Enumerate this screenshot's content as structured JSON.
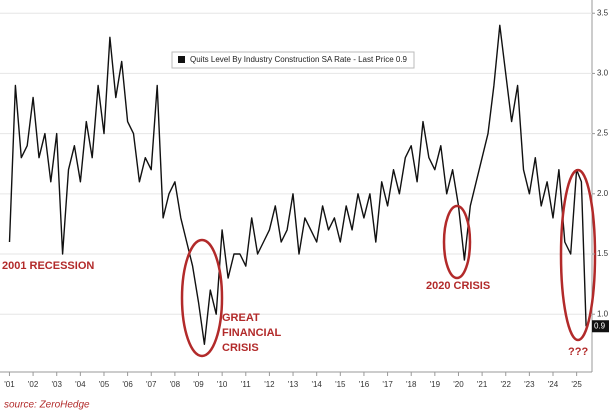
{
  "chart_data": {
    "type": "line",
    "legend": "Quits Level By Industry Construction SA Rate - Last Price 0.9",
    "series": [
      {
        "name": "Quits Level By Industry Construction SA Rate",
        "color": "#111111",
        "x": [
          2001,
          2001.25,
          2001.5,
          2001.75,
          2002,
          2002.25,
          2002.5,
          2002.75,
          2003,
          2003.25,
          2003.5,
          2003.75,
          2004,
          2004.25,
          2004.5,
          2004.75,
          2005,
          2005.25,
          2005.5,
          2005.75,
          2006,
          2006.25,
          2006.5,
          2006.75,
          2007,
          2007.25,
          2007.5,
          2007.75,
          2008,
          2008.25,
          2008.5,
          2008.75,
          2009,
          2009.25,
          2009.5,
          2009.75,
          2010,
          2010.25,
          2010.5,
          2010.75,
          2011,
          2011.25,
          2011.5,
          2011.75,
          2012,
          2012.25,
          2012.5,
          2012.75,
          2013,
          2013.25,
          2013.5,
          2013.75,
          2014,
          2014.25,
          2014.5,
          2014.75,
          2015,
          2015.25,
          2015.5,
          2015.75,
          2016,
          2016.25,
          2016.5,
          2016.75,
          2017,
          2017.25,
          2017.5,
          2017.75,
          2018,
          2018.25,
          2018.5,
          2018.75,
          2019,
          2019.25,
          2019.5,
          2019.75,
          2020,
          2020.25,
          2020.5,
          2020.75,
          2021,
          2021.25,
          2021.5,
          2021.75,
          2022,
          2022.25,
          2022.5,
          2022.75,
          2023,
          2023.25,
          2023.5,
          2023.75,
          2024,
          2024.25,
          2024.5,
          2024.75,
          2025,
          2025.2,
          2025.4
        ],
        "values": [
          1.6,
          2.9,
          2.3,
          2.4,
          2.8,
          2.3,
          2.5,
          2.1,
          2.5,
          1.5,
          2.2,
          2.4,
          2.1,
          2.6,
          2.3,
          2.9,
          2.5,
          3.3,
          2.8,
          3.1,
          2.6,
          2.5,
          2.1,
          2.3,
          2.2,
          2.9,
          1.8,
          2.0,
          2.1,
          1.8,
          1.6,
          1.4,
          1.1,
          0.75,
          1.2,
          1.0,
          1.7,
          1.3,
          1.5,
          1.5,
          1.4,
          1.8,
          1.5,
          1.6,
          1.7,
          1.9,
          1.6,
          1.7,
          2.0,
          1.5,
          1.8,
          1.7,
          1.6,
          1.9,
          1.7,
          1.8,
          1.6,
          1.9,
          1.7,
          2.0,
          1.8,
          2.0,
          1.6,
          2.1,
          1.9,
          2.2,
          2.0,
          2.3,
          2.4,
          2.1,
          2.6,
          2.3,
          2.2,
          2.4,
          2.0,
          2.2,
          1.9,
          1.45,
          1.9,
          2.1,
          2.3,
          2.5,
          2.9,
          3.4,
          3.0,
          2.6,
          2.9,
          2.2,
          2.0,
          2.3,
          1.9,
          2.1,
          1.8,
          2.2,
          1.6,
          1.5,
          2.2,
          2.1,
          0.9
        ]
      }
    ],
    "last_price_tag": 0.9,
    "xlim": [
      2000.6,
      2025.65
    ],
    "xticks": [
      {
        "value": 2001,
        "label": "'01"
      },
      {
        "value": 2002,
        "label": "'02"
      },
      {
        "value": 2003,
        "label": "'03"
      },
      {
        "value": 2004,
        "label": "'04"
      },
      {
        "value": 2005,
        "label": "'05"
      },
      {
        "value": 2006,
        "label": "'06"
      },
      {
        "value": 2007,
        "label": "'07"
      },
      {
        "value": 2008,
        "label": "'08"
      },
      {
        "value": 2009,
        "label": "'09"
      },
      {
        "value": 2010,
        "label": "'10"
      },
      {
        "value": 2011,
        "label": "'11"
      },
      {
        "value": 2012,
        "label": "'12"
      },
      {
        "value": 2013,
        "label": "'13"
      },
      {
        "value": 2014,
        "label": "'14"
      },
      {
        "value": 2015,
        "label": "'15"
      },
      {
        "value": 2016,
        "label": "'16"
      },
      {
        "value": 2017,
        "label": "'17"
      },
      {
        "value": 2018,
        "label": "'18"
      },
      {
        "value": 2019,
        "label": "'19"
      },
      {
        "value": 2020,
        "label": "'20"
      },
      {
        "value": 2021,
        "label": "'21"
      },
      {
        "value": 2022,
        "label": "'22"
      },
      {
        "value": 2023,
        "label": "'23"
      },
      {
        "value": 2024,
        "label": "'24"
      },
      {
        "value": 2025,
        "label": "'25"
      }
    ],
    "ylim": [
      0.52,
      3.61
    ],
    "yticks": [
      {
        "value": 1,
        "label": "1.0"
      },
      1.5,
      {
        "value": 2,
        "label": "2.0"
      },
      2.5,
      {
        "value": 3,
        "label": "3.0"
      },
      3.5
    ],
    "grid": true,
    "annotations": [
      "2001 RECESSION",
      [
        "GREAT",
        "FINANCIAL",
        "CRISIS"
      ],
      "2020 CRISIS",
      "???"
    ],
    "source": "source: ZeroHedge"
  }
}
